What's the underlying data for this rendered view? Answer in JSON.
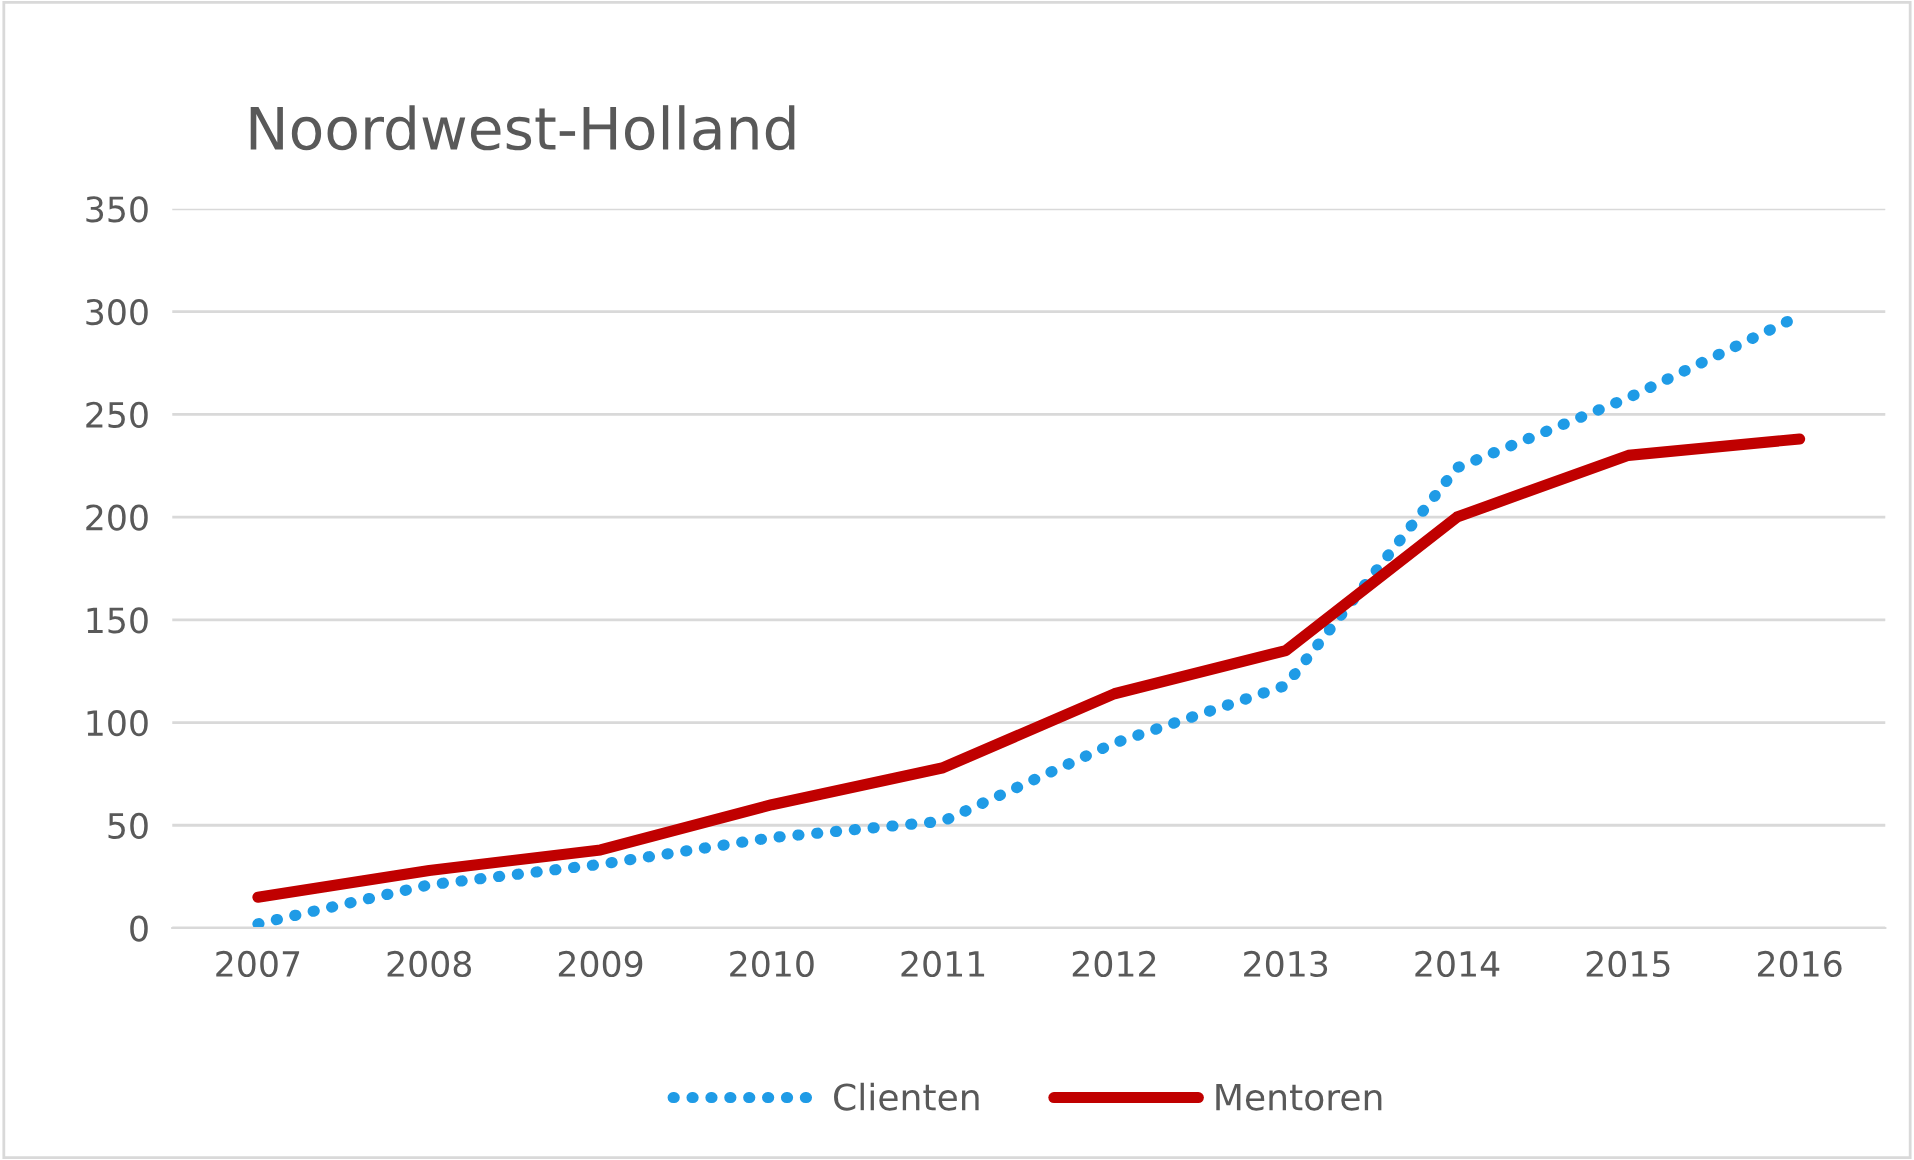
{
  "chart_data": {
    "type": "line",
    "title": "Noordwest-Holland",
    "categories": [
      "2007",
      "2008",
      "2009",
      "2010",
      "2011",
      "2012",
      "2013",
      "2014",
      "2015",
      "2016"
    ],
    "series": [
      {
        "name": "Clienten",
        "color": "#1f9be6",
        "line_style": "dotted",
        "values": [
          2,
          21,
          31,
          44,
          52,
          90,
          118,
          224,
          258,
          298
        ]
      },
      {
        "name": "Mentoren",
        "color": "#c00000",
        "line_style": "solid",
        "values": [
          15,
          28,
          38,
          60,
          78,
          114,
          135,
          200,
          230,
          238
        ]
      }
    ],
    "ylim": [
      0,
      350
    ],
    "yticks": [
      0,
      50,
      100,
      150,
      200,
      250,
      300,
      350
    ],
    "grid": "y",
    "legend": "bottom",
    "marker": "none"
  }
}
